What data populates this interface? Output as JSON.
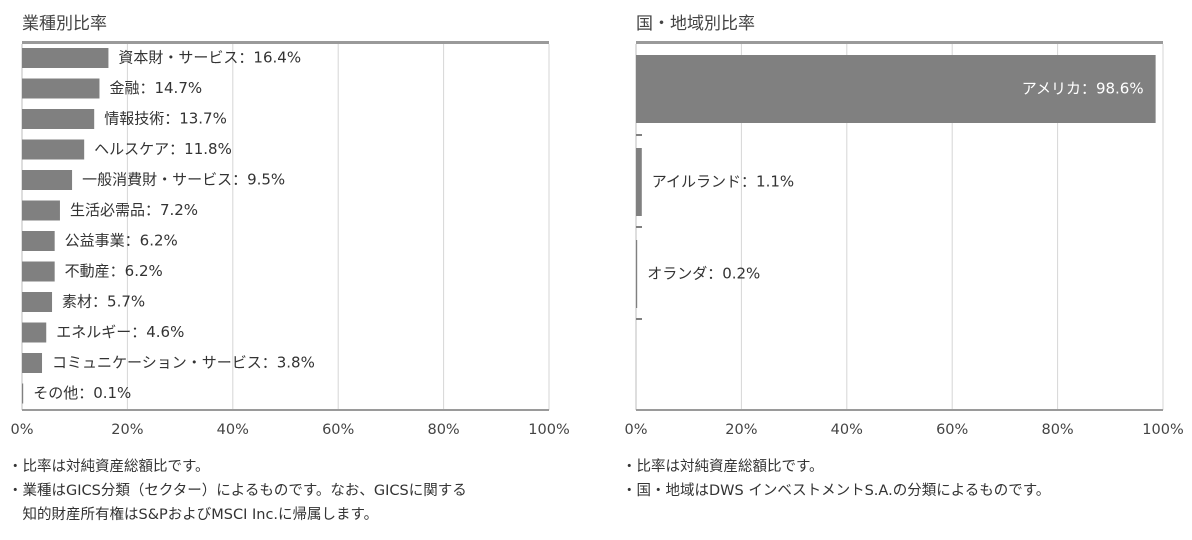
{
  "charts": [
    {
      "title": "業種別比率",
      "notes": [
        "・比率は対純資産総額比です。",
        "・業種はGICS分類（セクター）によるものです。なお、GICSに関する",
        "　知的財産所有権はS&PおよびMSCI Inc.に帰属します。"
      ]
    },
    {
      "title": "国・地域別比率",
      "notes": [
        "・比率は対純資産総額比です。",
        "・国・地域はDWS インベストメントS.A.の分類によるものです。"
      ]
    }
  ],
  "chart_data": [
    {
      "type": "bar",
      "orientation": "horizontal",
      "title": "業種別比率",
      "categories": [
        "資本財・サービス",
        "金融",
        "情報技術",
        "ヘルスケア",
        "一般消費財・サービス",
        "生活必需品",
        "公益事業",
        "不動産",
        "素材",
        "エネルギー",
        "コミュニケーション・サービス",
        "その他"
      ],
      "values": [
        16.4,
        14.7,
        13.7,
        11.8,
        9.5,
        7.2,
        6.2,
        6.2,
        5.7,
        4.6,
        3.8,
        0.1
      ],
      "data_labels": [
        "資本財・サービス：16.4%",
        "金融：14.7%",
        "情報技術：13.7%",
        "ヘルスケア：11.8%",
        "一般消費財・サービス：9.5%",
        "生活必需品：7.2%",
        "公益事業：6.2%",
        "不動産：6.2%",
        "素材：5.7%",
        "エネルギー：4.6%",
        "コミュニケーション・サービス：3.8%",
        "その他：0.1%"
      ],
      "xlim": [
        0,
        100
      ],
      "xticks": [
        0,
        20,
        40,
        60,
        80,
        100
      ],
      "xtick_labels": [
        "0%",
        "20%",
        "40%",
        "60%",
        "80%",
        "100%"
      ],
      "grid": true,
      "bar_color": "#808080"
    },
    {
      "type": "bar",
      "orientation": "horizontal",
      "title": "国・地域別比率",
      "categories": [
        "アメリカ",
        "アイルランド",
        "オランダ"
      ],
      "values": [
        98.6,
        1.1,
        0.2
      ],
      "data_labels": [
        "アメリカ：98.6%",
        "アイルランド：1.1%",
        "オランダ：0.2%"
      ],
      "xlim": [
        0,
        100
      ],
      "xticks": [
        0,
        20,
        40,
        60,
        80,
        100
      ],
      "xtick_labels": [
        "0%",
        "20%",
        "40%",
        "60%",
        "80%",
        "100%"
      ],
      "grid": true,
      "bar_color": "#808080"
    }
  ]
}
